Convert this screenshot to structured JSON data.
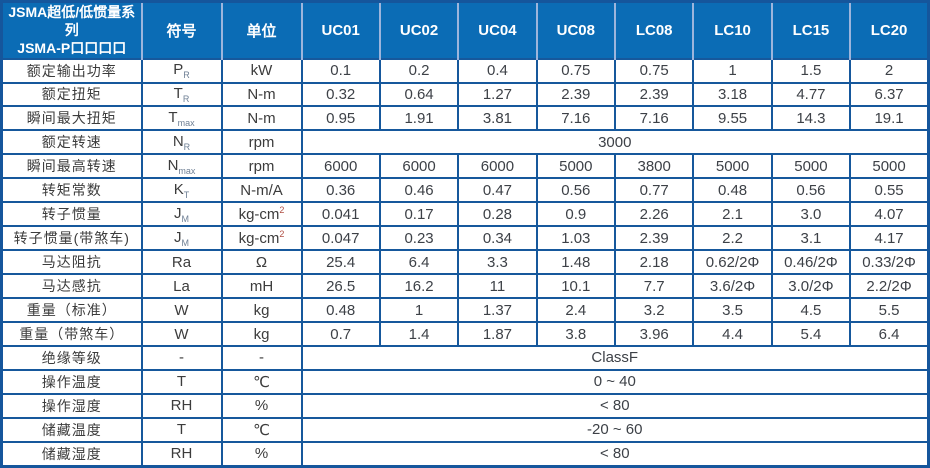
{
  "table": {
    "title_line1": "JSMA超低/低惯量系列",
    "title_line2": "JSMA-P口口口口",
    "symbol_header": "符号",
    "unit_header": "单位",
    "models": [
      "UC01",
      "UC02",
      "UC04",
      "UC08",
      "LC08",
      "LC10",
      "LC15",
      "LC20"
    ],
    "rows": [
      {
        "label": "额定输出功率",
        "symbol": {
          "base": "P",
          "sub": "R"
        },
        "unit": {
          "text": "kW"
        },
        "values": [
          "0.1",
          "0.2",
          "0.4",
          "0.75",
          "0.75",
          "1",
          "1.5",
          "2"
        ]
      },
      {
        "label": "额定扭矩",
        "symbol": {
          "base": "T",
          "sub": "R"
        },
        "unit": {
          "text": "N-m"
        },
        "values": [
          "0.32",
          "0.64",
          "1.27",
          "2.39",
          "2.39",
          "3.18",
          "4.77",
          "6.37"
        ]
      },
      {
        "label": "瞬间最大扭矩",
        "symbol": {
          "base": "T",
          "sub": "max"
        },
        "unit": {
          "text": "N-m"
        },
        "values": [
          "0.95",
          "1.91",
          "3.81",
          "7.16",
          "7.16",
          "9.55",
          "14.3",
          "19.1"
        ]
      },
      {
        "label": "额定转速",
        "symbol": {
          "base": "N",
          "sub": "R"
        },
        "unit": {
          "text": "rpm"
        },
        "span_value": "3000"
      },
      {
        "label": "瞬间最高转速",
        "symbol": {
          "base": "N",
          "sub": "max"
        },
        "unit": {
          "text": "rpm"
        },
        "values": [
          "6000",
          "6000",
          "6000",
          "5000",
          "3800",
          "5000",
          "5000",
          "5000"
        ]
      },
      {
        "label": "转矩常数",
        "symbol": {
          "base": "K",
          "sub": "T"
        },
        "unit": {
          "text": "N-m/A"
        },
        "values": [
          "0.36",
          "0.46",
          "0.47",
          "0.56",
          "0.77",
          "0.48",
          "0.56",
          "0.55"
        ]
      },
      {
        "label": "转子惯量",
        "symbol": {
          "base": "J",
          "sub": "M"
        },
        "unit": {
          "text": "kg-cm",
          "sup": "2"
        },
        "values": [
          "0.041",
          "0.17",
          "0.28",
          "0.9",
          "2.26",
          "2.1",
          "3.0",
          "4.07"
        ]
      },
      {
        "label": "转子惯量(带煞车)",
        "symbol": {
          "base": "J",
          "sub": "M"
        },
        "unit": {
          "text": "kg-cm",
          "sup": "2"
        },
        "values": [
          "0.047",
          "0.23",
          "0.34",
          "1.03",
          "2.39",
          "2.2",
          "3.1",
          "4.17"
        ]
      },
      {
        "label": "马达阻抗",
        "symbol": {
          "base": "Ra"
        },
        "unit": {
          "text": "Ω"
        },
        "values": [
          "25.4",
          "6.4",
          "3.3",
          "1.48",
          "2.18",
          "0.62/2Φ",
          "0.46/2Φ",
          "0.33/2Φ"
        ]
      },
      {
        "label": "马达感抗",
        "symbol": {
          "base": "La"
        },
        "unit": {
          "text": "mH"
        },
        "values": [
          "26.5",
          "16.2",
          "11",
          "10.1",
          "7.7",
          "3.6/2Φ",
          "3.0/2Φ",
          "2.2/2Φ"
        ]
      },
      {
        "label": "重量（标准）",
        "symbol": {
          "base": "W"
        },
        "unit": {
          "text": "kg"
        },
        "values": [
          "0.48",
          "1",
          "1.37",
          "2.4",
          "3.2",
          "3.5",
          "4.5",
          "5.5"
        ]
      },
      {
        "label": "重量（带煞车）",
        "symbol": {
          "base": "W"
        },
        "unit": {
          "text": "kg"
        },
        "values": [
          "0.7",
          "1.4",
          "1.87",
          "3.8",
          "3.96",
          "4.4",
          "5.4",
          "6.4"
        ]
      },
      {
        "label": "绝缘等级",
        "symbol": {
          "base": "-"
        },
        "unit": {
          "text": "-"
        },
        "span_value": "ClassF"
      },
      {
        "label": "操作温度",
        "symbol": {
          "base": "T"
        },
        "unit": {
          "text": "℃"
        },
        "span_value": "0 ~ 40"
      },
      {
        "label": "操作湿度",
        "symbol": {
          "base": "RH"
        },
        "unit": {
          "text": "%"
        },
        "span_value": "< 80"
      },
      {
        "label": "储藏温度",
        "symbol": {
          "base": "T"
        },
        "unit": {
          "text": "℃"
        },
        "span_value": "-20 ~ 60"
      },
      {
        "label": "储藏湿度",
        "symbol": {
          "base": "RH"
        },
        "unit": {
          "text": "%"
        },
        "span_value": "< 80"
      }
    ]
  },
  "colors": {
    "header_bg": "#0b6cb5",
    "header_divider": "#9db5dc",
    "grid_border": "#16589c",
    "value_text": "#3d4147",
    "unit_superscript": "#b04f44"
  }
}
